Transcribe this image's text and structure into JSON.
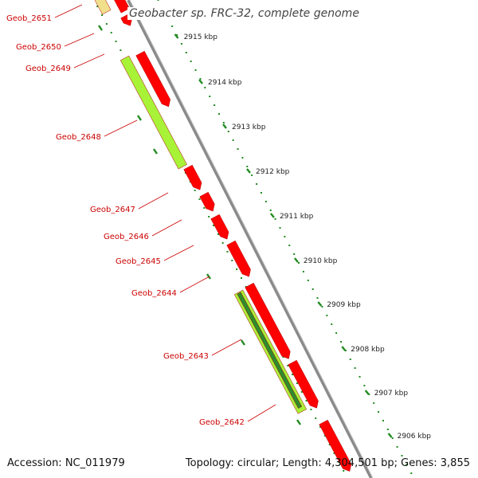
{
  "title": "Geobacter sp. FRC-32, complete genome",
  "footer": {
    "accession": "Accession: NC_011979",
    "topology": "Topology: circular; Length: 4,304,501 bp; Genes: 3,855"
  },
  "scale_labels": [
    "2915 kbp",
    "2914 kbp",
    "2913 kbp",
    "2912 kbp",
    "2911 kbp",
    "2910 kbp",
    "2909 kbp",
    "2908 kbp",
    "2907 kbp",
    "2906 kbp"
  ],
  "gene_labels": [
    "Geob_2651",
    "Geob_2650",
    "Geob_2649",
    "Geob_2648",
    "Geob_2647",
    "Geob_2646",
    "Geob_2645",
    "Geob_2644",
    "Geob_2643",
    "Geob_2642"
  ],
  "colors": {
    "gene_red": "#ff0000",
    "gene_lime": "#a8f238",
    "gene_dark_green": "#2e8b2e",
    "gene_khaki": "#f0e08c",
    "backbone": "#8a8a8a",
    "tick_green": "#228b22",
    "label_red": "#cc0000"
  }
}
